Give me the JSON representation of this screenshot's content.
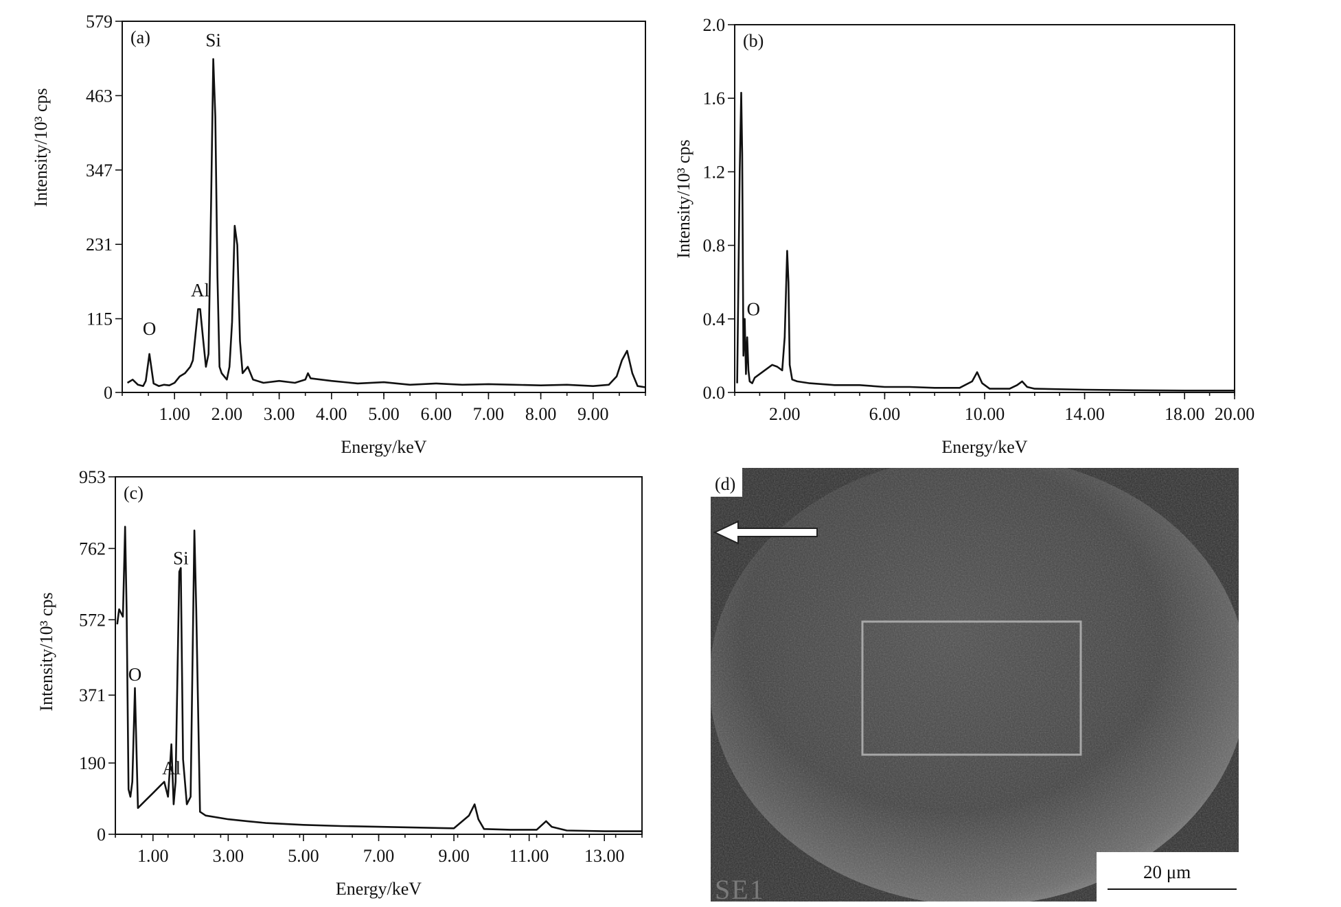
{
  "chart_data": [
    {
      "type": "line",
      "panel_label": "(a)",
      "xlabel": "Energy/keV",
      "ylabel": "Intensity/10³ cps",
      "xlim": [
        0,
        10
      ],
      "ylim": [
        0,
        579
      ],
      "x_ticks": [
        1,
        2,
        3,
        4,
        5,
        6,
        7,
        8,
        9
      ],
      "x_tick_labels": [
        "1.00",
        "2.00",
        "3.00",
        "4.00",
        "5.00",
        "6.00",
        "7.00",
        "8.00",
        "9.00"
      ],
      "y_ticks": [
        0,
        115,
        231,
        347,
        463,
        579
      ],
      "y_tick_labels": [
        "0",
        "115",
        "231",
        "347",
        "463",
        "579"
      ],
      "peak_labels": [
        {
          "text": "O",
          "x": 0.52,
          "y": 90
        },
        {
          "text": "Al",
          "x": 1.49,
          "y": 150
        },
        {
          "text": "Si",
          "x": 1.74,
          "y": 540
        }
      ],
      "x": [
        0.1,
        0.2,
        0.3,
        0.4,
        0.45,
        0.52,
        0.6,
        0.7,
        0.8,
        0.9,
        1.0,
        1.1,
        1.2,
        1.3,
        1.35,
        1.4,
        1.45,
        1.49,
        1.55,
        1.6,
        1.65,
        1.7,
        1.74,
        1.78,
        1.82,
        1.86,
        1.9,
        2.0,
        2.05,
        2.1,
        2.15,
        2.2,
        2.25,
        2.3,
        2.4,
        2.5,
        2.7,
        3.0,
        3.3,
        3.5,
        3.55,
        3.6,
        4.0,
        4.5,
        5.0,
        5.5,
        6.0,
        6.5,
        7.0,
        7.5,
        8.0,
        8.5,
        9.0,
        9.3,
        9.45,
        9.55,
        9.65,
        9.75,
        9.85,
        10.0
      ],
      "y": [
        15,
        20,
        12,
        10,
        18,
        60,
        14,
        10,
        12,
        11,
        15,
        25,
        30,
        40,
        50,
        90,
        130,
        130,
        80,
        40,
        60,
        300,
        520,
        430,
        180,
        40,
        30,
        20,
        40,
        110,
        260,
        230,
        80,
        30,
        40,
        20,
        15,
        18,
        15,
        20,
        30,
        22,
        18,
        14,
        16,
        12,
        14,
        12,
        13,
        12,
        11,
        12,
        10,
        12,
        25,
        50,
        65,
        30,
        10,
        8
      ]
    },
    {
      "type": "line",
      "panel_label": "(b)",
      "xlabel": "Energy/keV",
      "ylabel": "Intensity/10³ cps",
      "xlim": [
        0,
        20
      ],
      "ylim": [
        0,
        2.0
      ],
      "x_ticks": [
        2,
        6,
        10,
        14,
        18,
        20
      ],
      "x_tick_labels": [
        "2.00",
        "6.00",
        "10.00",
        "14.00",
        "18.00",
        "20.00"
      ],
      "y_ticks": [
        0,
        0.4,
        0.8,
        1.2,
        1.6,
        2.0
      ],
      "y_tick_labels": [
        "0.0",
        "0.4",
        "0.8",
        "1.2",
        "1.6",
        "2.0"
      ],
      "peak_labels": [
        {
          "text": "O",
          "x": 0.75,
          "y": 0.42
        }
      ],
      "x": [
        0.1,
        0.2,
        0.26,
        0.3,
        0.35,
        0.4,
        0.45,
        0.5,
        0.55,
        0.6,
        0.7,
        0.8,
        1.0,
        1.2,
        1.5,
        1.7,
        1.9,
        2.0,
        2.1,
        2.15,
        2.2,
        2.3,
        2.5,
        3.0,
        4.0,
        5.0,
        6.0,
        7.0,
        8.0,
        9.0,
        9.5,
        9.7,
        9.9,
        10.2,
        10.5,
        11.0,
        11.3,
        11.5,
        11.7,
        12.0,
        14.0,
        16.0,
        18.0,
        20.0
      ],
      "y": [
        0.05,
        1.2,
        1.63,
        1.3,
        0.2,
        0.4,
        0.1,
        0.3,
        0.12,
        0.06,
        0.05,
        0.08,
        0.1,
        0.12,
        0.15,
        0.14,
        0.12,
        0.3,
        0.77,
        0.6,
        0.15,
        0.07,
        0.06,
        0.05,
        0.04,
        0.04,
        0.03,
        0.03,
        0.025,
        0.025,
        0.06,
        0.11,
        0.05,
        0.02,
        0.02,
        0.02,
        0.04,
        0.06,
        0.03,
        0.02,
        0.015,
        0.012,
        0.01,
        0.01
      ]
    },
    {
      "type": "line",
      "panel_label": "(c)",
      "xlabel": "Energy/keV",
      "ylabel": "Intensity/10³ cps",
      "xlim": [
        0,
        14
      ],
      "ylim": [
        0,
        953
      ],
      "x_ticks": [
        1,
        3,
        5,
        7,
        9,
        11,
        13
      ],
      "x_tick_labels": [
        "1.00",
        "3.00",
        "5.00",
        "7.00",
        "9.00",
        "11.00",
        "13.00"
      ],
      "y_ticks": [
        0,
        190,
        371,
        572,
        762,
        953
      ],
      "y_tick_labels": [
        "0",
        "190",
        "371",
        "572",
        "762",
        "953"
      ],
      "peak_labels": [
        {
          "text": "O",
          "x": 0.52,
          "y": 410
        },
        {
          "text": "Al",
          "x": 1.49,
          "y": 160
        },
        {
          "text": "Si",
          "x": 1.74,
          "y": 720
        }
      ],
      "x": [
        0.05,
        0.1,
        0.2,
        0.26,
        0.3,
        0.35,
        0.4,
        0.45,
        0.52,
        0.6,
        0.8,
        1.0,
        1.2,
        1.3,
        1.4,
        1.49,
        1.55,
        1.6,
        1.7,
        1.74,
        1.8,
        1.9,
        2.0,
        2.1,
        2.15,
        2.25,
        2.4,
        3.0,
        3.5,
        4.0,
        5.0,
        6.0,
        7.0,
        8.0,
        9.0,
        9.4,
        9.55,
        9.65,
        9.8,
        10.5,
        11.2,
        11.45,
        11.6,
        12.0,
        13.0,
        14.0
      ],
      "y": [
        560,
        600,
        580,
        820,
        600,
        120,
        100,
        140,
        390,
        70,
        90,
        110,
        130,
        140,
        100,
        240,
        80,
        140,
        700,
        710,
        200,
        80,
        100,
        810,
        600,
        60,
        50,
        40,
        35,
        30,
        25,
        22,
        20,
        18,
        16,
        50,
        80,
        40,
        14,
        12,
        12,
        35,
        20,
        10,
        8,
        8
      ]
    }
  ],
  "sem_image": {
    "panel_label": "(d)",
    "detector_label": "SE1",
    "scale_bar_label": "20 μm",
    "arrow_direction": "left"
  }
}
